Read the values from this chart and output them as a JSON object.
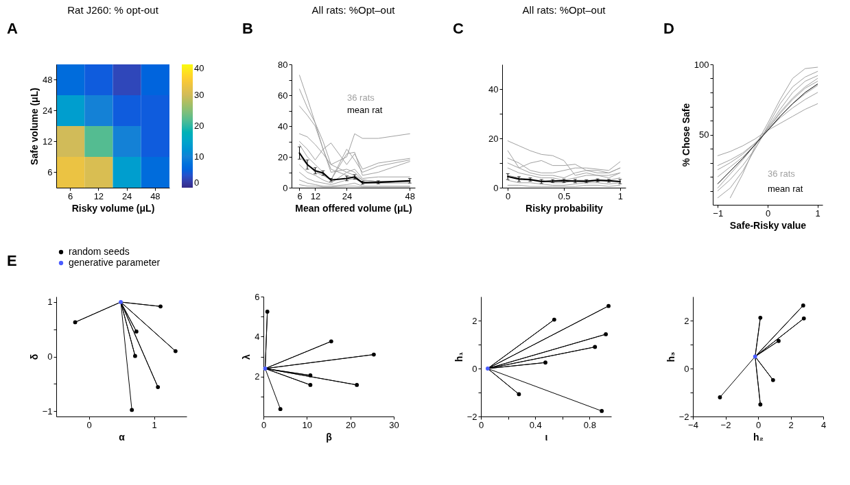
{
  "chart_data": [
    {
      "type": "heatmap",
      "title": "Rat J260: % opt-out",
      "xlabel": "Risky volume (μL)",
      "ylabel": "Safe volume (μL)",
      "annotations": [
        "A"
      ],
      "categories": [
        "6",
        "12",
        "24",
        "48"
      ],
      "y_categories": [
        "48",
        "24",
        "12",
        "6"
      ],
      "cells": [
        [
          7,
          5,
          3,
          6
        ],
        [
          14,
          10,
          5,
          5
        ],
        [
          30,
          22,
          10,
          5
        ],
        [
          33,
          31,
          14,
          7
        ]
      ],
      "clim": [
        0,
        40
      ],
      "cticks": [
        0,
        10,
        20,
        30,
        40
      ],
      "colors": [
        "#352a87",
        "#0f5cdd",
        "#1481d6",
        "#06a4ca",
        "#2eb7a4",
        "#87bf77",
        "#d1bb59",
        "#fec832",
        "#f9fb0e"
      ]
    },
    {
      "type": "line",
      "title": "All rats: %Opt–out",
      "xlabel": "Mean offered volume (μL)",
      "annotations": [
        "B",
        "36 rats",
        "mean rat"
      ],
      "x": [
        6,
        9,
        12,
        15,
        18,
        24,
        27,
        30,
        36,
        48
      ],
      "xlim": [
        3,
        50
      ],
      "xticks": [
        6,
        12,
        24,
        48
      ],
      "ylim": [
        0,
        80
      ],
      "yticks": [
        0,
        {
          "value": 10,
          "label": null
        },
        20,
        {
          "value": 30,
          "label": null
        },
        40,
        {
          "value": 50,
          "label": null
        },
        60,
        {
          "value": 70,
          "label": null
        },
        80
      ],
      "series": [
        {
          "color": "#a0a0a0",
          "values": [
            73,
            58,
            42,
            25,
            12,
            8,
            6,
            4,
            3,
            3
          ]
        },
        {
          "color": "#a0a0a0",
          "values": [
            64,
            52,
            42,
            30,
            15,
            10,
            8,
            5,
            4,
            4
          ]
        },
        {
          "color": "#a0a0a0",
          "values": [
            53,
            47,
            40,
            25,
            10,
            12,
            10,
            5,
            4,
            4
          ]
        },
        {
          "color": "#a0a0a0",
          "values": [
            35,
            33,
            28,
            22,
            15,
            20,
            35,
            32,
            32,
            35
          ]
        },
        {
          "color": "#a0a0a0",
          "values": [
            30,
            25,
            18,
            25,
            29,
            15,
            22,
            12,
            16,
            19
          ]
        },
        {
          "color": "#a0a0a0",
          "values": [
            28,
            20,
            15,
            10,
            5,
            25,
            18,
            10,
            14,
            18
          ]
        },
        {
          "color": "#a0a0a0",
          "values": [
            20,
            15,
            10,
            8,
            5,
            22,
            23,
            8,
            10,
            17
          ]
        },
        {
          "color": "#a0a0a0",
          "values": [
            15,
            10,
            8,
            5,
            3,
            10,
            12,
            6,
            7,
            7
          ]
        },
        {
          "color": "#a0a0a0",
          "values": [
            10,
            6,
            4,
            3,
            2,
            5,
            6,
            3,
            3,
            4
          ]
        },
        {
          "color": "#a0a0a0",
          "values": [
            5,
            3,
            2,
            1,
            1,
            2,
            3,
            1,
            1,
            1
          ]
        },
        {
          "color": "#a0a0a0",
          "values": [
            2,
            1,
            1,
            0.5,
            0.5,
            1,
            1,
            0.5,
            0.5,
            0.5
          ]
        },
        {
          "color": "#000000",
          "values": [
            22.5,
            15,
            11,
            9.5,
            5,
            6,
            7,
            3.2,
            3.5,
            4.5
          ],
          "errors": [
            4,
            3,
            2,
            1.5,
            1,
            1.5,
            1.5,
            1,
            1,
            1.5
          ]
        }
      ]
    },
    {
      "type": "line",
      "title": "All rats: %Opt–out",
      "xlabel": "Risky probability",
      "annotations": [
        "C"
      ],
      "x": [
        0,
        0.1,
        0.2,
        0.3,
        0.4,
        0.5,
        0.6,
        0.7,
        0.8,
        0.9,
        1
      ],
      "xlim": [
        -0.05,
        1.05
      ],
      "xticks": [
        0,
        0.5,
        1
      ],
      "ylim": [
        0,
        50
      ],
      "yticks": [
        0,
        {
          "value": 10,
          "label": null
        },
        20,
        {
          "value": 30,
          "label": null
        },
        40
      ],
      "series": [
        {
          "color": "#a0a0a0",
          "values": [
            19,
            17,
            15,
            13.5,
            13,
            11,
            5,
            6,
            5,
            5,
            6
          ]
        },
        {
          "color": "#a0a0a0",
          "values": [
            15,
            8,
            10,
            11,
            9,
            9,
            9.5,
            7,
            7,
            6,
            8
          ]
        },
        {
          "color": "#a0a0a0",
          "values": [
            12,
            10,
            7,
            6,
            6,
            7,
            8,
            8,
            7.5,
            7,
            10.5
          ]
        },
        {
          "color": "#a0a0a0",
          "values": [
            10,
            8,
            6,
            5,
            5,
            4,
            6,
            7,
            6,
            6,
            8
          ]
        },
        {
          "color": "#a0a0a0",
          "values": [
            8,
            6,
            5,
            4,
            4,
            3,
            4,
            5,
            5,
            4,
            6
          ]
        },
        {
          "color": "#a0a0a0",
          "values": [
            5,
            4,
            3,
            3,
            2,
            2,
            3,
            3,
            3,
            3,
            4
          ]
        },
        {
          "color": "#a0a0a0",
          "values": [
            3,
            2,
            2,
            1.5,
            1,
            1,
            1.5,
            2,
            2,
            1.5,
            2
          ]
        },
        {
          "color": "#a0a0a0",
          "values": [
            1,
            1,
            0.5,
            0.5,
            0.5,
            0.5,
            0.5,
            1,
            1,
            0.5,
            1
          ]
        },
        {
          "color": "#000000",
          "values": [
            4.5,
            3.5,
            3.3,
            2.5,
            2.7,
            2.8,
            2.7,
            2.6,
            3,
            2.8,
            2.5
          ],
          "errors": [
            1.2,
            1,
            0.7,
            0.8,
            0.6,
            0.7,
            0.7,
            0.6,
            0.6,
            0.6,
            0.9
          ]
        }
      ]
    },
    {
      "type": "line",
      "xlabel": "Safe-Risky value",
      "ylabel": "% Chose Safe",
      "annotations": [
        "D",
        "36 rats",
        "mean rat"
      ],
      "x": [
        -1,
        -0.75,
        -0.5,
        -0.25,
        0,
        0.25,
        0.5,
        0.75,
        1
      ],
      "xlim": [
        -1.1,
        1.1
      ],
      "xticks": [
        -1,
        0,
        1
      ],
      "ylim": [
        0,
        100
      ],
      "yticks": [
        {
          "value": 10,
          "label": null
        },
        {
          "value": 20,
          "label": null
        },
        {
          "value": 30,
          "label": null
        },
        {
          "value": 40,
          "label": null
        },
        50,
        {
          "value": 60,
          "label": null
        },
        {
          "value": 70,
          "label": null
        },
        {
          "value": 80,
          "label": null
        },
        {
          "value": 90,
          "label": null
        },
        100
      ],
      "series": [
        {
          "color": "#a0a0a0",
          "values": [
            null,
            5,
            22,
            42,
            58,
            75,
            90,
            97,
            98
          ]
        },
        {
          "color": "#a0a0a0",
          "values": [
            35,
            38,
            42,
            47,
            53,
            58,
            63,
            68,
            72
          ]
        },
        {
          "color": "#a0a0a0",
          "values": [
            28,
            32,
            37,
            44,
            53,
            62,
            69,
            75,
            80
          ]
        },
        {
          "color": "#a0a0a0",
          "values": [
            20,
            27,
            34,
            43,
            54,
            65,
            75,
            83,
            88
          ]
        },
        {
          "color": "#a0a0a0",
          "values": [
            10,
            18,
            28,
            40,
            55,
            68,
            80,
            88,
            92
          ]
        },
        {
          "color": "#a0a0a0",
          "values": [
            5,
            12,
            24,
            40,
            56,
            72,
            84,
            91,
            95
          ]
        },
        {
          "color": "#a0a0a0",
          "values": [
            25,
            30,
            36,
            44,
            53,
            63,
            72,
            79,
            85
          ]
        },
        {
          "color": "#a0a0a0",
          "values": [
            12,
            22,
            32,
            43,
            54,
            66,
            76,
            84,
            90
          ]
        },
        {
          "color": "#000000",
          "values": [
            15,
            24,
            33,
            43,
            53,
            63,
            72,
            80,
            86
          ]
        }
      ]
    },
    {
      "type": "scatter",
      "xlabel": "α",
      "ylabel": "δ",
      "annotations": [
        "E"
      ],
      "legend": "top left",
      "xlim": [
        -0.5,
        1.5
      ],
      "xticks": [
        0,
        1
      ],
      "ylim": [
        -1.1,
        1.1
      ],
      "yticks": [
        -1,
        {
          "value": -0.5,
          "label": null
        },
        0,
        {
          "value": 0.5,
          "label": null
        },
        1
      ],
      "series": [
        {
          "type": "line",
          "color": "#000000",
          "x": [
            0.49,
            -0.21,
            0.49,
            1.1,
            0.49,
            0.73,
            0.49,
            0.71,
            0.49,
            1.33,
            0.49,
            1.06,
            0.49,
            0.66
          ],
          "values": [
            1,
            0.63,
            1,
            0.92,
            1,
            0.46,
            1,
            0.01,
            1,
            0.1,
            1,
            -0.56,
            1,
            -0.98
          ]
        },
        {
          "name": "random seeds",
          "marker": "circle",
          "color": "#000000",
          "x": [
            -0.21,
            1.1,
            0.73,
            0.71,
            1.33,
            1.06,
            0.66
          ],
          "values": [
            0.63,
            0.92,
            0.46,
            0.01,
            0.1,
            -0.56,
            -0.98
          ]
        },
        {
          "name": "generative parameter",
          "marker": "circle",
          "color": "#4a5cff",
          "x": [
            0.49
          ],
          "values": [
            1
          ]
        }
      ]
    },
    {
      "type": "scatter",
      "xlabel": "β",
      "ylabel": "λ",
      "xlim": [
        0,
        30
      ],
      "xticks": [
        0,
        10,
        20,
        30
      ],
      "ylim": [
        0,
        6
      ],
      "yticks": [
        {
          "value": 1,
          "label": null
        },
        2,
        {
          "value": 3,
          "label": null
        },
        4,
        {
          "value": 5,
          "label": null
        },
        6
      ],
      "series": [
        {
          "type": "line",
          "color": "#000000",
          "x": [
            0.4,
            0.9,
            0.4,
            15.6,
            0.4,
            25.4,
            0.4,
            10.8,
            0.4,
            10.8,
            0.4,
            21.5,
            0.4,
            3.9
          ],
          "values": [
            2.4,
            5.25,
            2.4,
            3.76,
            2.4,
            3.1,
            2.4,
            2.06,
            2.4,
            1.58,
            2.4,
            1.58,
            2.4,
            0.37
          ]
        },
        {
          "marker": "circle",
          "color": "#000000",
          "x": [
            0.9,
            15.6,
            25.4,
            10.8,
            10.8,
            21.5,
            3.9
          ],
          "values": [
            5.25,
            3.76,
            3.1,
            2.06,
            1.58,
            1.58,
            0.37
          ]
        },
        {
          "marker": "circle",
          "color": "#4a5cff",
          "x": [
            0.4
          ],
          "values": [
            2.4
          ]
        }
      ]
    },
    {
      "type": "scatter",
      "xlabel": "ι",
      "ylabel": "h₁",
      "xlim": [
        0,
        0.96
      ],
      "xticks": [
        0,
        {
          "value": 0.2,
          "label": null
        },
        0.4,
        {
          "value": 0.6,
          "label": null
        },
        0.8
      ],
      "ylim": [
        -2,
        3
      ],
      "yticks": [
        -2,
        {
          "value": -1,
          "label": null
        },
        0,
        {
          "value": 1,
          "label": null
        },
        2
      ],
      "series": [
        {
          "type": "line",
          "color": "#000000",
          "x": [
            0.05,
            0.54,
            0.05,
            0.94,
            0.05,
            0.92,
            0.05,
            0.84,
            0.05,
            0.475,
            0.05,
            0.28,
            0.05,
            0.89
          ],
          "values": [
            0,
            2.04,
            0,
            2.61,
            0,
            1.43,
            0,
            0.9,
            0,
            0.25,
            0,
            -1.07,
            0,
            -1.77
          ]
        },
        {
          "marker": "circle",
          "color": "#000000",
          "x": [
            0.54,
            0.94,
            0.92,
            0.84,
            0.475,
            0.28,
            0.89
          ],
          "values": [
            2.04,
            2.61,
            1.43,
            0.9,
            0.25,
            -1.07,
            -1.77
          ]
        },
        {
          "marker": "circle",
          "color": "#4a5cff",
          "x": [
            0.05
          ],
          "values": [
            0
          ]
        }
      ]
    },
    {
      "type": "scatter",
      "xlabel": "h₂",
      "ylabel": "h₃",
      "xlim": [
        -4,
        4
      ],
      "xticks": [
        -4,
        -2,
        0,
        2,
        4
      ],
      "ylim": [
        -2,
        3
      ],
      "yticks": [
        -2,
        {
          "value": -1,
          "label": null
        },
        0,
        {
          "value": 1,
          "label": null
        },
        2
      ],
      "series": [
        {
          "type": "line",
          "color": "#000000",
          "x": [
            -0.18,
            0.14,
            -0.18,
            2.77,
            -0.18,
            2.81,
            -0.18,
            1.26,
            -0.18,
            0.92,
            -0.18,
            0.14,
            -0.18,
            -2.34
          ],
          "values": [
            0.5,
            2.12,
            0.5,
            2.63,
            0.5,
            2.09,
            0.5,
            1.15,
            0.5,
            -0.48,
            0.5,
            -1.5,
            0.5,
            -1.2
          ]
        },
        {
          "marker": "circle",
          "color": "#000000",
          "x": [
            0.14,
            2.77,
            2.81,
            1.26,
            0.92,
            0.14,
            -2.34
          ],
          "values": [
            2.12,
            2.63,
            2.09,
            1.15,
            -0.48,
            -1.5,
            -1.2
          ]
        },
        {
          "marker": "circle",
          "color": "#4a5cff",
          "x": [
            -0.18
          ],
          "values": [
            0.5
          ]
        }
      ]
    }
  ]
}
